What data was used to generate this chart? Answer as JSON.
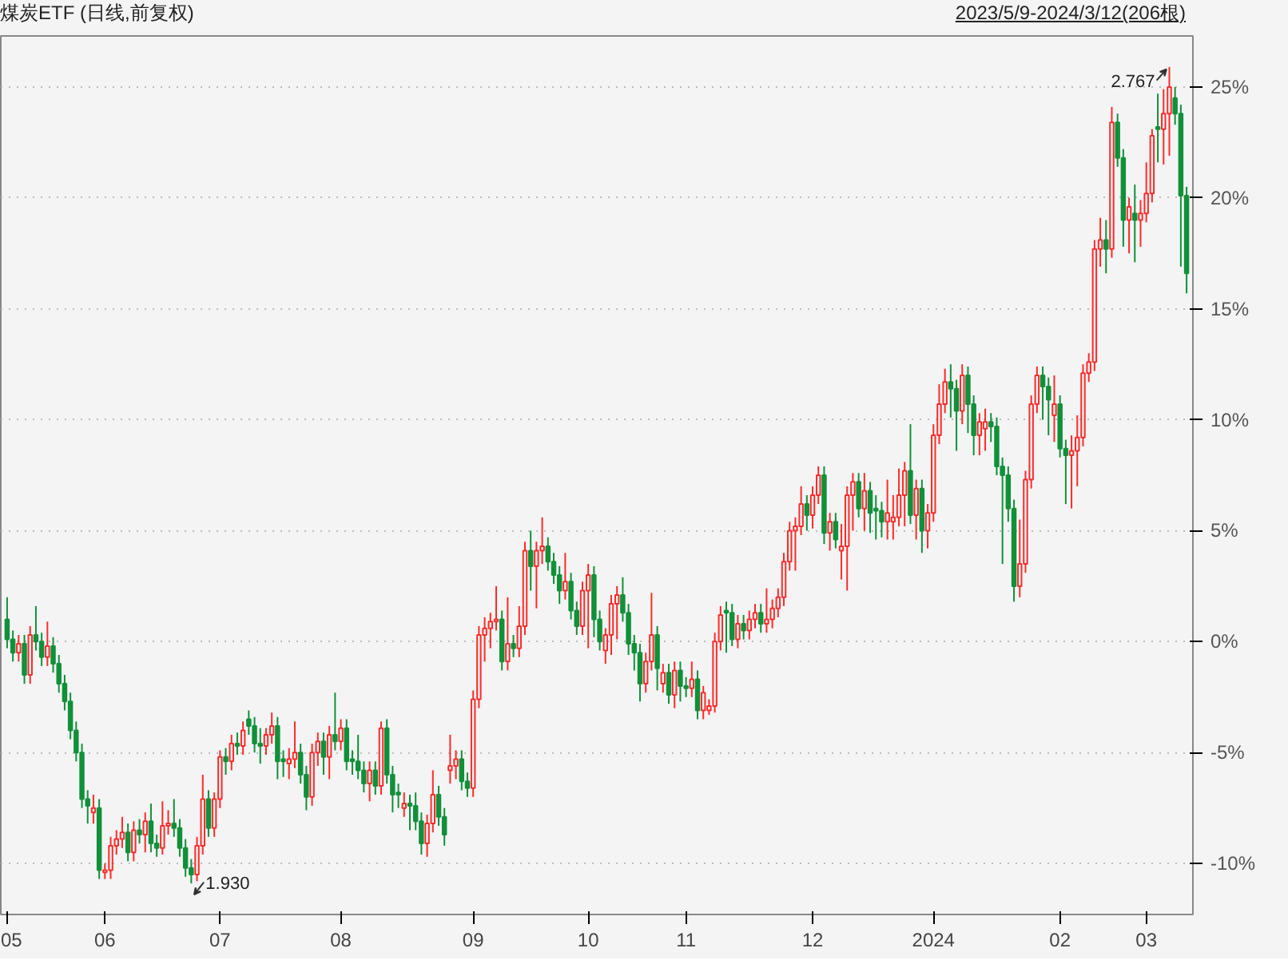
{
  "chart_data": {
    "type": "candlestick",
    "title": "煤炭ETF (日线,前复权)",
    "subtitle": "2023/5/9-2024/3/12(206根)",
    "categories": [
      "05",
      null,
      null,
      null,
      null,
      null,
      null,
      null,
      null,
      null,
      null,
      null,
      null,
      null,
      null,
      null,
      null,
      "06",
      null,
      null,
      null,
      null,
      null,
      null,
      null,
      null,
      null,
      null,
      null,
      null,
      null,
      null,
      null,
      null,
      null,
      null,
      null,
      "07",
      null,
      null,
      null,
      null,
      null,
      null,
      null,
      null,
      null,
      null,
      null,
      null,
      null,
      null,
      null,
      null,
      null,
      null,
      null,
      null,
      "08",
      null,
      null,
      null,
      null,
      null,
      null,
      null,
      null,
      null,
      null,
      null,
      null,
      null,
      null,
      null,
      null,
      null,
      null,
      null,
      null,
      null,
      null,
      "09",
      null,
      null,
      null,
      null,
      null,
      null,
      null,
      null,
      null,
      null,
      null,
      null,
      null,
      null,
      null,
      null,
      null,
      null,
      null,
      "10",
      null,
      null,
      null,
      null,
      null,
      null,
      null,
      null,
      null,
      null,
      null,
      null,
      null,
      null,
      null,
      null,
      "11",
      null,
      null,
      null,
      null,
      null,
      null,
      null,
      null,
      null,
      null,
      null,
      null,
      null,
      null,
      null,
      null,
      null,
      null,
      null,
      null,
      null,
      "12",
      null,
      null,
      null,
      null,
      null,
      null,
      null,
      null,
      null,
      null,
      null,
      null,
      null,
      null,
      null,
      null,
      null,
      null,
      null,
      null,
      "2024",
      null,
      null,
      null,
      null,
      null,
      null,
      null,
      null,
      null,
      null,
      null,
      null,
      null,
      null,
      null,
      null,
      null,
      null,
      null,
      null,
      null,
      "02",
      null,
      null,
      null,
      null,
      null,
      null,
      null,
      null,
      null,
      null,
      null,
      null,
      null,
      null,
      "03",
      null,
      null,
      null,
      null,
      null,
      null,
      null
    ],
    "ohlc": [
      [
        1.0,
        2.0,
        -0.3,
        0.1
      ],
      [
        0.1,
        0.5,
        -0.9,
        -0.5
      ],
      [
        -0.5,
        0.3,
        -0.9,
        -0.1
      ],
      [
        -0.1,
        0.3,
        -1.9,
        -1.5
      ],
      [
        -1.5,
        0.7,
        -1.9,
        0.3
      ],
      [
        0.3,
        1.6,
        -0.4,
        0
      ],
      [
        0,
        0.4,
        -1.1,
        -0.7
      ],
      [
        -0.7,
        0.9,
        -1.1,
        -0.2
      ],
      [
        -0.2,
        0.2,
        -1.4,
        -1.0
      ],
      [
        -1.0,
        -0.6,
        -2.3,
        -1.9
      ],
      [
        -1.9,
        -1.5,
        -3.1,
        -2.7
      ],
      [
        -2.7,
        -2.3,
        -4.4,
        -4.0
      ],
      [
        -4.0,
        -3.6,
        -5.4,
        -5.0
      ],
      [
        -5.0,
        -4.6,
        -7.5,
        -7.1
      ],
      [
        -7.1,
        -6.7,
        -8.2,
        -7.4
      ],
      [
        -7.7,
        -6.9,
        -8.2,
        -7.5
      ],
      [
        -7.5,
        -7.1,
        -10.7,
        -10.3
      ],
      [
        -10.4,
        -10.0,
        -10.7,
        -10.3
      ],
      [
        -10.3,
        -8.8,
        -10.7,
        -9.2
      ],
      [
        -9.2,
        -8.5,
        -9.6,
        -8.9
      ],
      [
        -8.9,
        -7.9,
        -9.3,
        -8.6
      ],
      [
        -8.6,
        -8.2,
        -9.9,
        -9.5
      ],
      [
        -9.5,
        -8.1,
        -9.9,
        -8.5
      ],
      [
        -8.5,
        -8.0,
        -9.1,
        -8.7
      ],
      [
        -8.7,
        -7.7,
        -9.5,
        -8.1
      ],
      [
        -8.1,
        -7.3,
        -9.5,
        -9.1
      ],
      [
        -9.1,
        -8.7,
        -9.7,
        -9.3
      ],
      [
        -9.3,
        -7.2,
        -9.6,
        -8.3
      ],
      [
        -8.3,
        -7.6,
        -8.7,
        -8.2
      ],
      [
        -8.2,
        -7.1,
        -8.8,
        -8.4
      ],
      [
        -8.4,
        -8.0,
        -9.7,
        -9.3
      ],
      [
        -9.3,
        -8.9,
        -10.6,
        -10.2
      ],
      [
        -10.2,
        -9.8,
        -10.9,
        -10.5
      ],
      [
        -10.5,
        -8.8,
        -10.8,
        -9.2
      ],
      [
        -9.2,
        -6.0,
        -9.6,
        -7.1
      ],
      [
        -7.1,
        -6.7,
        -8.8,
        -8.4
      ],
      [
        -8.4,
        -6.8,
        -8.8,
        -7.1
      ],
      [
        -7.1,
        -4.9,
        -7.5,
        -5.2
      ],
      [
        -5.2,
        -4.8,
        -6.0,
        -5.4
      ],
      [
        -5.4,
        -4.2,
        -5.8,
        -4.6
      ],
      [
        -4.6,
        -4.1,
        -5.1,
        -4.7
      ],
      [
        -4.7,
        -3.6,
        -5.1,
        -4.0
      ],
      [
        -3.5,
        -3.1,
        -4.2,
        -3.8
      ],
      [
        -3.8,
        -3.4,
        -5.0,
        -4.6
      ],
      [
        -4.6,
        -3.9,
        -5.5,
        -4.7
      ],
      [
        -4.7,
        -3.9,
        -5.1,
        -4.2
      ],
      [
        -4.2,
        -3.2,
        -4.6,
        -3.8
      ],
      [
        -3.8,
        -3.4,
        -6.2,
        -5.4
      ],
      [
        -5.3,
        -4.9,
        -6.1,
        -5.4
      ],
      [
        -5.5,
        -4.8,
        -6.2,
        -5.3
      ],
      [
        -5.3,
        -3.6,
        -5.7,
        -5.0
      ],
      [
        -5.0,
        -4.6,
        -6.4,
        -6.0
      ],
      [
        -6.0,
        -5.6,
        -7.6,
        -7.0
      ],
      [
        -7.0,
        -4.6,
        -7.4,
        -5.0
      ],
      [
        -5.0,
        -4.1,
        -5.6,
        -4.5
      ],
      [
        -4.5,
        -4.1,
        -6.0,
        -5.2
      ],
      [
        -5.2,
        -3.8,
        -6.2,
        -4.2
      ],
      [
        -4.2,
        -2.3,
        -4.9,
        -4.5
      ],
      [
        -4.5,
        -3.5,
        -4.9,
        -3.9
      ],
      [
        -3.9,
        -3.5,
        -5.8,
        -5.4
      ],
      [
        -5.3,
        -4.9,
        -6.0,
        -5.4
      ],
      [
        -5.4,
        -4.2,
        -6.2,
        -5.8
      ],
      [
        -5.8,
        -5.4,
        -6.8,
        -6.4
      ],
      [
        -6.4,
        -5.4,
        -7.2,
        -5.8
      ],
      [
        -5.8,
        -5.4,
        -6.9,
        -6.5
      ],
      [
        -6.5,
        -3.6,
        -6.9,
        -3.9
      ],
      [
        -3.9,
        -3.5,
        -6.4,
        -6.0
      ],
      [
        -6.0,
        -5.6,
        -7.7,
        -6.9
      ],
      [
        -6.8,
        -6.4,
        -7.5,
        -6.9
      ],
      [
        -7.5,
        -6.8,
        -7.9,
        -7.3
      ],
      [
        -7.3,
        -6.9,
        -8.5,
        -7.4
      ],
      [
        -7.4,
        -6.8,
        -8.5,
        -8.1
      ],
      [
        -8.1,
        -7.7,
        -9.6,
        -9.1
      ],
      [
        -9.1,
        -7.8,
        -9.7,
        -8.2
      ],
      [
        -8.2,
        -5.8,
        -8.6,
        -6.9
      ],
      [
        -6.9,
        -6.5,
        -8.3,
        -7.9
      ],
      [
        -7.9,
        -7.5,
        -9.2,
        -8.7
      ],
      [
        -5.8,
        -4.2,
        -6.4,
        -5.6
      ],
      [
        -5.6,
        -4.9,
        -6.2,
        -5.3
      ],
      [
        -5.3,
        -4.9,
        -6.7,
        -6.3
      ],
      [
        -6.3,
        -5.9,
        -7.0,
        -6.6
      ],
      [
        -6.6,
        -2.2,
        -7.0,
        -2.6
      ],
      [
        -2.6,
        0.7,
        -3.0,
        0.3
      ],
      [
        0.3,
        1.1,
        -0.9,
        0.6
      ],
      [
        0.6,
        1.3,
        -0.3,
        0.9
      ],
      [
        0.9,
        2.5,
        0.5,
        1.0
      ],
      [
        1.0,
        1.4,
        -1.3,
        -0.9
      ],
      [
        -0.9,
        2.0,
        -1.3,
        -0.1
      ],
      [
        -0.1,
        0.3,
        -0.7,
        -0.3
      ],
      [
        -0.3,
        1.6,
        -0.7,
        0.7
      ],
      [
        0.7,
        4.5,
        0.3,
        4.1
      ],
      [
        4.1,
        5.0,
        2.3,
        3.4
      ],
      [
        3.4,
        4.5,
        1.5,
        4.1
      ],
      [
        4.1,
        5.6,
        3.5,
        4.3
      ],
      [
        4.3,
        4.7,
        3.2,
        3.6
      ],
      [
        3.6,
        4.0,
        2.6,
        3.0
      ],
      [
        3.0,
        3.4,
        1.7,
        2.3
      ],
      [
        2.3,
        4.0,
        1.9,
        2.7
      ],
      [
        2.7,
        3.1,
        1.0,
        1.4
      ],
      [
        1.4,
        1.8,
        0.3,
        0.7
      ],
      [
        0.7,
        2.7,
        0.3,
        2.3
      ],
      [
        2.3,
        3.5,
        -0.3,
        3.0
      ],
      [
        3.0,
        3.4,
        0.2,
        1.0
      ],
      [
        1.0,
        1.4,
        -0.4,
        0
      ],
      [
        -0.4,
        0.6,
        -1.0,
        0.3
      ],
      [
        0.3,
        2.1,
        -0.6,
        1.7
      ],
      [
        1.7,
        2.5,
        0.1,
        2.1
      ],
      [
        2.1,
        2.9,
        0.9,
        1.3
      ],
      [
        1.3,
        1.7,
        -0.6,
        -0.1
      ],
      [
        -0.1,
        0.3,
        -1.3,
        -0.5
      ],
      [
        -0.5,
        -0.1,
        -2.7,
        -1.9
      ],
      [
        -1.9,
        -0.5,
        -2.3,
        -0.9
      ],
      [
        -0.9,
        2.2,
        -1.3,
        0.3
      ],
      [
        0.3,
        0.7,
        -2.2,
        -1.2
      ],
      [
        -1.9,
        -1.0,
        -2.3,
        -1.4
      ],
      [
        -1.4,
        -1.0,
        -2.8,
        -2.4
      ],
      [
        -2.4,
        -0.9,
        -3.0,
        -1.3
      ],
      [
        -1.3,
        -0.9,
        -2.7,
        -2.0
      ],
      [
        -2.0,
        -1.6,
        -2.5,
        -2.1
      ],
      [
        -2.1,
        -0.9,
        -2.5,
        -1.7
      ],
      [
        -1.7,
        -1.3,
        -3.5,
        -3.1
      ],
      [
        -3.1,
        -2.0,
        -3.5,
        -2.3
      ],
      [
        -3.1,
        -2.6,
        -3.3,
        -2.9
      ],
      [
        -2.9,
        0.4,
        -3.2,
        0
      ],
      [
        0,
        1.6,
        -0.4,
        1.2
      ],
      [
        1.4,
        1.8,
        -0.5,
        1.3
      ],
      [
        1.3,
        1.7,
        -0.2,
        0.1
      ],
      [
        0.1,
        1.2,
        -0.3,
        0.8
      ],
      [
        0.8,
        1.2,
        0.1,
        0.5
      ],
      [
        0.5,
        1.4,
        0.1,
        1.0
      ],
      [
        1.0,
        1.7,
        0.6,
        1.3
      ],
      [
        1.3,
        1.7,
        0.4,
        0.8
      ],
      [
        0.8,
        2.4,
        0.4,
        1.0
      ],
      [
        1.0,
        1.9,
        0.6,
        1.5
      ],
      [
        1.5,
        2.4,
        1.1,
        2.0
      ],
      [
        2.0,
        4.0,
        1.6,
        3.6
      ],
      [
        3.6,
        5.4,
        3.2,
        5.0
      ],
      [
        5.0,
        5.6,
        3.2,
        5.2
      ],
      [
        5.2,
        7.0,
        4.8,
        6.2
      ],
      [
        6.2,
        6.6,
        5.0,
        5.7
      ],
      [
        5.7,
        7.0,
        5.1,
        6.6
      ],
      [
        6.6,
        7.9,
        6.2,
        7.5
      ],
      [
        7.5,
        7.9,
        4.4,
        4.9
      ],
      [
        4.9,
        5.8,
        4.1,
        5.4
      ],
      [
        5.4,
        5.8,
        4.2,
        4.6
      ],
      [
        4.1,
        5.3,
        2.8,
        4.3
      ],
      [
        4.3,
        7.0,
        2.3,
        6.6
      ],
      [
        6.6,
        7.6,
        5.0,
        7.2
      ],
      [
        7.2,
        7.6,
        5.6,
        6.0
      ],
      [
        6.0,
        7.6,
        5.0,
        6.8
      ],
      [
        6.8,
        7.2,
        4.9,
        5.8
      ],
      [
        6.0,
        6.6,
        4.6,
        5.9
      ],
      [
        5.9,
        6.3,
        4.7,
        5.4
      ],
      [
        5.4,
        7.3,
        4.6,
        5.8
      ],
      [
        5.4,
        6.6,
        4.6,
        5.6
      ],
      [
        5.6,
        7.8,
        5.2,
        6.6
      ],
      [
        6.6,
        8.1,
        5.2,
        7.7
      ],
      [
        7.7,
        9.8,
        5.3,
        5.7
      ],
      [
        5.7,
        7.3,
        4.6,
        6.9
      ],
      [
        6.9,
        7.3,
        4.0,
        5.0
      ],
      [
        5.0,
        6.2,
        4.2,
        5.8
      ],
      [
        5.8,
        9.8,
        5.4,
        9.3
      ],
      [
        9.3,
        11.6,
        8.9,
        10.7
      ],
      [
        10.7,
        12.3,
        10.3,
        11.7
      ],
      [
        11.7,
        12.5,
        10.1,
        11.4
      ],
      [
        11.4,
        11.8,
        8.6,
        10.4
      ],
      [
        10.4,
        12.5,
        9.8,
        12.0
      ],
      [
        12.0,
        12.4,
        9.4,
        10.7
      ],
      [
        10.7,
        11.1,
        8.4,
        9.3
      ],
      [
        9.3,
        10.3,
        8.4,
        9.9
      ],
      [
        9.6,
        10.5,
        8.6,
        9.9
      ],
      [
        9.9,
        10.3,
        9.0,
        9.7
      ],
      [
        9.7,
        10.1,
        7.5,
        7.9
      ],
      [
        7.9,
        8.3,
        3.5,
        7.5
      ],
      [
        7.5,
        7.9,
        5.4,
        6.0
      ],
      [
        6.0,
        6.4,
        1.8,
        2.5
      ],
      [
        2.5,
        5.5,
        2.0,
        3.5
      ],
      [
        3.5,
        7.7,
        3.1,
        7.3
      ],
      [
        7.3,
        11.1,
        6.9,
        10.7
      ],
      [
        10.7,
        12.4,
        10.3,
        12.0
      ],
      [
        12.0,
        12.4,
        10.0,
        11.5
      ],
      [
        11.5,
        11.9,
        9.3,
        10.9
      ],
      [
        10.2,
        12.0,
        9.0,
        10.7
      ],
      [
        10.7,
        11.1,
        8.3,
        8.7
      ],
      [
        8.7,
        9.1,
        6.2,
        8.4
      ],
      [
        8.4,
        9.3,
        6.0,
        8.6
      ],
      [
        8.6,
        10.2,
        7.0,
        9.2
      ],
      [
        9.2,
        12.5,
        8.8,
        12.1
      ],
      [
        12.1,
        13.0,
        11.7,
        12.6
      ],
      [
        12.6,
        18.1,
        12.2,
        17.7
      ],
      [
        17.7,
        19.1,
        16.9,
        18.1
      ],
      [
        18.1,
        19.0,
        16.6,
        17.7
      ],
      [
        17.7,
        24.1,
        17.3,
        23.4
      ],
      [
        23.4,
        23.8,
        21.4,
        21.8
      ],
      [
        21.8,
        22.2,
        17.8,
        19.0
      ],
      [
        19.0,
        20.0,
        17.5,
        19.6
      ],
      [
        19.3,
        20.6,
        17.1,
        19.0
      ],
      [
        19.0,
        19.9,
        17.8,
        19.3
      ],
      [
        19.3,
        21.6,
        18.9,
        20.2
      ],
      [
        20.2,
        23.1,
        19.8,
        22.8
      ],
      [
        23.2,
        24.7,
        21.6,
        23.1
      ],
      [
        23.1,
        24.9,
        21.5,
        23.8
      ],
      [
        23.8,
        25.9,
        21.9,
        25.0
      ],
      [
        24.5,
        25.0,
        23.3,
        23.8
      ],
      [
        23.8,
        24.2,
        16.9,
        20.1
      ],
      [
        20.1,
        20.5,
        15.7,
        16.6
      ]
    ],
    "ylim": [
      -12.3,
      27.3
    ],
    "yticks": [
      {
        "value": -10,
        "label": "-10%"
      },
      {
        "value": -5,
        "label": "-5%"
      },
      {
        "value": 0,
        "label": "0%"
      },
      {
        "value": 5,
        "label": "5%"
      },
      {
        "value": 10,
        "label": "10%"
      },
      {
        "value": 15,
        "label": "15%"
      },
      {
        "value": 20,
        "label": "20%"
      },
      {
        "value": 25,
        "label": "25%"
      }
    ],
    "grid": "y",
    "annotations": [
      "2.767",
      "1.930"
    ]
  }
}
